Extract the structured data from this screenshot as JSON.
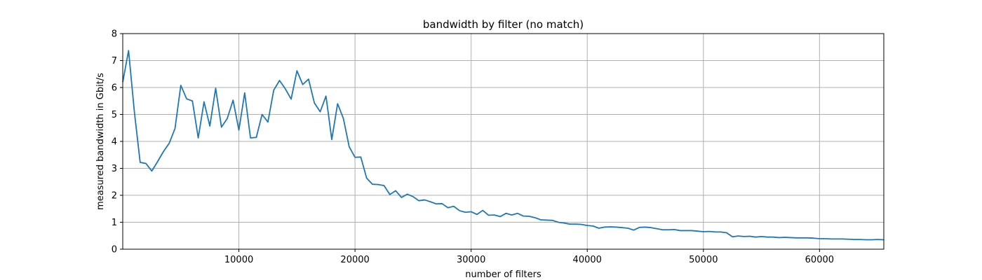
{
  "chart_data": {
    "type": "line",
    "title": "bandwidth by filter (no match)",
    "xlabel": "number of filters",
    "ylabel": "measured bandwidth in Gbit/s",
    "xlim": [
      0,
      65536
    ],
    "ylim": [
      0,
      8
    ],
    "xticks": [
      10000,
      20000,
      30000,
      40000,
      50000,
      60000
    ],
    "xtick_labels": [
      "10000",
      "20000",
      "30000",
      "40000",
      "50000",
      "60000"
    ],
    "yticks": [
      0,
      1,
      2,
      3,
      4,
      5,
      6,
      7,
      8
    ],
    "ytick_labels": [
      "0",
      "1",
      "2",
      "3",
      "4",
      "5",
      "6",
      "7",
      "8"
    ],
    "grid": true,
    "line_color": "#1f77b4",
    "series": [
      {
        "x": [
          0,
          500,
          1000,
          1500,
          2000,
          2500,
          3000,
          3500,
          4000,
          4500,
          5000,
          5500,
          6000,
          6500,
          7000,
          7500,
          8000,
          8500,
          9000,
          9500,
          10000,
          10500,
          11000,
          11500,
          12000,
          12500,
          13000,
          13500,
          14000,
          14500,
          15000,
          15500,
          16000,
          16500,
          17000,
          17500,
          18000,
          18500,
          19000,
          19500,
          20000,
          20500,
          21000,
          21500,
          22000,
          22500,
          23000,
          23500,
          24000,
          24500,
          25000,
          25500,
          26000,
          26500,
          27000,
          27500,
          28000,
          28500,
          29000,
          29500,
          30000,
          30500,
          31000,
          31500,
          32000,
          32500,
          33000,
          33500,
          34000,
          34500,
          35000,
          35500,
          36000,
          36500,
          37000,
          37500,
          38000,
          38500,
          39000,
          39500,
          40000,
          40500,
          41000,
          41500,
          42000,
          42500,
          43000,
          43500,
          44000,
          44500,
          45000,
          45500,
          46000,
          46500,
          47000,
          47500,
          48000,
          48500,
          49000,
          49500,
          50000,
          50500,
          51000,
          51500,
          52000,
          52500,
          53000,
          53500,
          54000,
          54500,
          55000,
          55500,
          56000,
          56500,
          57000,
          57500,
          58000,
          58500,
          59000,
          59500,
          60000,
          60500,
          61000,
          61500,
          62000,
          62500,
          63000,
          63500,
          64000,
          64500,
          65000,
          65536
        ],
        "y": [
          6.2,
          7.37,
          5.1,
          3.22,
          3.18,
          2.9,
          3.25,
          3.62,
          3.93,
          4.48,
          6.08,
          5.58,
          5.5,
          4.13,
          5.47,
          4.57,
          5.97,
          4.53,
          4.85,
          5.53,
          4.42,
          5.8,
          4.13,
          4.15,
          5.0,
          4.72,
          5.9,
          6.26,
          5.95,
          5.57,
          6.62,
          6.11,
          6.31,
          5.43,
          5.1,
          5.68,
          4.07,
          5.4,
          4.85,
          3.8,
          3.41,
          3.42,
          2.64,
          2.41,
          2.4,
          2.36,
          2.03,
          2.17,
          1.92,
          2.04,
          1.95,
          1.8,
          1.83,
          1.76,
          1.68,
          1.69,
          1.54,
          1.59,
          1.43,
          1.37,
          1.39,
          1.29,
          1.44,
          1.26,
          1.27,
          1.21,
          1.33,
          1.27,
          1.33,
          1.23,
          1.22,
          1.17,
          1.09,
          1.08,
          1.07,
          1.0,
          0.97,
          0.93,
          0.93,
          0.92,
          0.88,
          0.86,
          0.78,
          0.82,
          0.83,
          0.82,
          0.8,
          0.78,
          0.71,
          0.81,
          0.82,
          0.8,
          0.76,
          0.72,
          0.72,
          0.73,
          0.69,
          0.69,
          0.69,
          0.67,
          0.65,
          0.66,
          0.64,
          0.64,
          0.61,
          0.46,
          0.49,
          0.47,
          0.48,
          0.45,
          0.47,
          0.45,
          0.45,
          0.43,
          0.44,
          0.43,
          0.42,
          0.42,
          0.42,
          0.41,
          0.39,
          0.39,
          0.38,
          0.38,
          0.38,
          0.37,
          0.36,
          0.36,
          0.35,
          0.35,
          0.36,
          0.35
        ]
      }
    ]
  }
}
